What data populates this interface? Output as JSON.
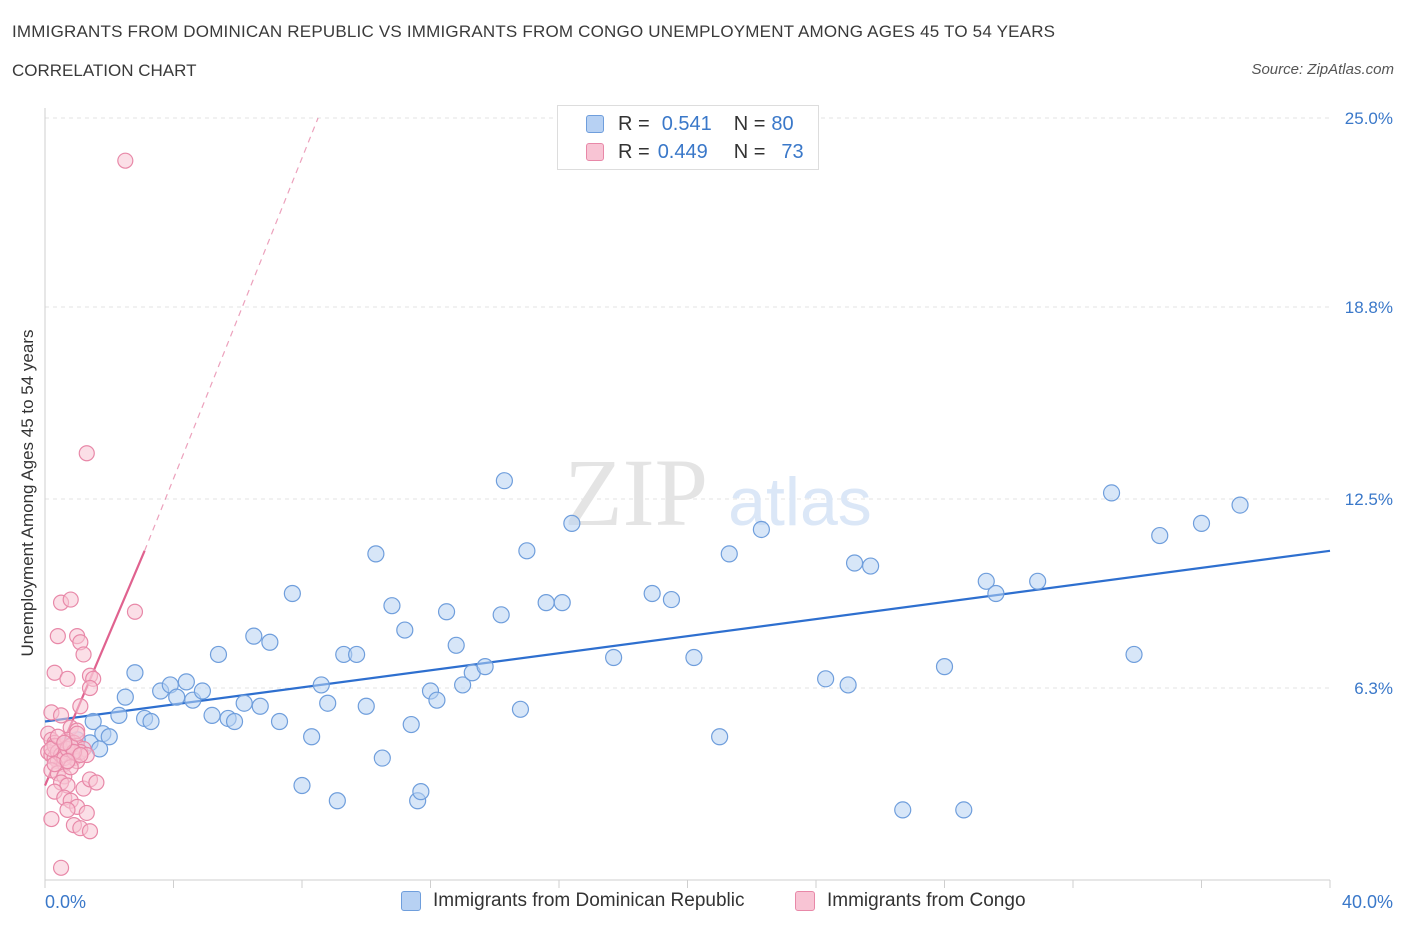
{
  "header": {
    "title": "IMMIGRANTS FROM DOMINICAN REPUBLIC VS IMMIGRANTS FROM CONGO UNEMPLOYMENT AMONG AGES 45 TO 54 YEARS",
    "subtitle": "CORRELATION CHART",
    "source": "Source: ZipAtlas.com"
  },
  "watermark": {
    "zip": "ZIP",
    "atlas": "atlas"
  },
  "legend": {
    "r_label": "R =",
    "n_label": "N =",
    "rows": [
      {
        "r": "0.541",
        "n": "80"
      },
      {
        "r": "0.449",
        "n": "73"
      }
    ]
  },
  "colors": {
    "blue_fill": "#b7d1f3",
    "blue_stroke": "#6f9edc",
    "blue_line": "#2e6fcf",
    "pink_fill": "#f8c4d4",
    "pink_stroke": "#e888a8",
    "pink_line": "#e0628f",
    "grid": "#e3e3e3",
    "tick_text": "#3a78c9"
  },
  "chart_data": {
    "type": "scatter",
    "title": "IMMIGRANTS FROM DOMINICAN REPUBLIC VS IMMIGRANTS FROM CONGO UNEMPLOYMENT AMONG AGES 45 TO 54 YEARS",
    "ylabel": "Unemployment Among Ages 45 to 54 years",
    "xlabel": "",
    "xlim": [
      0,
      40
    ],
    "ylim": [
      0,
      25
    ],
    "x_tick_labels": [
      {
        "value": 0,
        "label": "0.0%"
      },
      {
        "value": 40,
        "label": "40.0%"
      }
    ],
    "y_tick_labels": [
      {
        "value": 6.3,
        "label": "6.3%"
      },
      {
        "value": 12.5,
        "label": "12.5%"
      },
      {
        "value": 18.8,
        "label": "18.8%"
      },
      {
        "value": 25.0,
        "label": "25.0%"
      }
    ],
    "grid": true,
    "legend_position": "top-center",
    "series": [
      {
        "name": "Immigrants from Dominican Republic",
        "color": "#6f9edc",
        "trend": {
          "x": [
            0,
            40
          ],
          "y": [
            5.2,
            10.8
          ],
          "style": "solid"
        },
        "points": [
          [
            1.4,
            4.5
          ],
          [
            1.5,
            5.2
          ],
          [
            1.8,
            4.8
          ],
          [
            2.0,
            4.7
          ],
          [
            2.3,
            5.4
          ],
          [
            2.5,
            6.0
          ],
          [
            2.8,
            6.8
          ],
          [
            3.1,
            5.3
          ],
          [
            3.3,
            5.2
          ],
          [
            3.6,
            6.2
          ],
          [
            3.9,
            6.4
          ],
          [
            4.1,
            6.0
          ],
          [
            4.4,
            6.5
          ],
          [
            4.6,
            5.9
          ],
          [
            4.9,
            6.2
          ],
          [
            5.2,
            5.4
          ],
          [
            5.4,
            7.4
          ],
          [
            5.7,
            5.3
          ],
          [
            5.9,
            5.2
          ],
          [
            6.2,
            5.8
          ],
          [
            6.5,
            8.0
          ],
          [
            6.7,
            5.7
          ],
          [
            7.0,
            7.8
          ],
          [
            7.3,
            5.2
          ],
          [
            7.7,
            9.4
          ],
          [
            8.0,
            3.1
          ],
          [
            8.3,
            4.7
          ],
          [
            8.6,
            6.4
          ],
          [
            8.8,
            5.8
          ],
          [
            9.1,
            2.6
          ],
          [
            9.3,
            7.4
          ],
          [
            9.7,
            7.4
          ],
          [
            10.0,
            5.7
          ],
          [
            10.3,
            10.7
          ],
          [
            10.5,
            4.0
          ],
          [
            10.8,
            9.0
          ],
          [
            11.2,
            8.2
          ],
          [
            11.4,
            5.1
          ],
          [
            11.6,
            2.6
          ],
          [
            11.7,
            2.9
          ],
          [
            12.0,
            6.2
          ],
          [
            12.2,
            5.9
          ],
          [
            12.5,
            8.8
          ],
          [
            12.8,
            7.7
          ],
          [
            13.0,
            6.4
          ],
          [
            13.3,
            6.8
          ],
          [
            13.7,
            7.0
          ],
          [
            14.2,
            8.7
          ],
          [
            14.3,
            13.1
          ],
          [
            14.8,
            5.6
          ],
          [
            15.0,
            10.8
          ],
          [
            15.6,
            9.1
          ],
          [
            16.1,
            9.1
          ],
          [
            16.4,
            11.7
          ],
          [
            17.7,
            7.3
          ],
          [
            18.9,
            9.4
          ],
          [
            19.5,
            9.2
          ],
          [
            20.2,
            7.3
          ],
          [
            21.0,
            4.7
          ],
          [
            21.3,
            10.7
          ],
          [
            22.3,
            11.5
          ],
          [
            24.3,
            6.6
          ],
          [
            25.0,
            6.4
          ],
          [
            25.2,
            10.4
          ],
          [
            25.7,
            10.3
          ],
          [
            26.7,
            2.3
          ],
          [
            28.0,
            7.0
          ],
          [
            28.6,
            2.3
          ],
          [
            29.3,
            9.8
          ],
          [
            29.6,
            9.4
          ],
          [
            30.9,
            9.8
          ],
          [
            33.2,
            12.7
          ],
          [
            33.9,
            7.4
          ],
          [
            34.7,
            11.3
          ],
          [
            36.0,
            11.7
          ],
          [
            37.2,
            12.3
          ],
          [
            1.0,
            4.6
          ],
          [
            0.6,
            4.4
          ],
          [
            1.7,
            4.3
          ],
          [
            0.9,
            4.2
          ]
        ]
      },
      {
        "name": "Immigrants from Congo",
        "color": "#e888a8",
        "trend": {
          "x": [
            0,
            3.1
          ],
          "y": [
            3.1,
            10.8
          ],
          "style": "solid",
          "extension": {
            "x": [
              3.1,
              8.5
            ],
            "y": [
              10.8,
              25.0
            ],
            "style": "dashed"
          }
        },
        "points": [
          [
            2.5,
            23.6
          ],
          [
            1.3,
            14.0
          ],
          [
            2.8,
            8.8
          ],
          [
            0.5,
            9.1
          ],
          [
            0.8,
            9.2
          ],
          [
            0.4,
            8.0
          ],
          [
            1.0,
            8.0
          ],
          [
            1.1,
            7.8
          ],
          [
            1.2,
            7.4
          ],
          [
            0.3,
            6.8
          ],
          [
            0.7,
            6.6
          ],
          [
            1.4,
            6.7
          ],
          [
            1.5,
            6.6
          ],
          [
            1.4,
            6.3
          ],
          [
            0.2,
            5.5
          ],
          [
            0.5,
            5.4
          ],
          [
            1.1,
            5.7
          ],
          [
            0.8,
            5.0
          ],
          [
            1.0,
            4.9
          ],
          [
            0.1,
            4.8
          ],
          [
            0.2,
            4.6
          ],
          [
            0.3,
            4.5
          ],
          [
            0.4,
            4.4
          ],
          [
            0.5,
            4.3
          ],
          [
            0.6,
            4.2
          ],
          [
            0.7,
            4.6
          ],
          [
            0.9,
            4.5
          ],
          [
            1.0,
            4.4
          ],
          [
            1.2,
            4.3
          ],
          [
            0.1,
            4.2
          ],
          [
            0.2,
            4.1
          ],
          [
            0.3,
            4.0
          ],
          [
            0.4,
            3.9
          ],
          [
            0.6,
            3.8
          ],
          [
            0.8,
            4.1
          ],
          [
            0.9,
            4.0
          ],
          [
            1.0,
            3.9
          ],
          [
            1.1,
            4.2
          ],
          [
            1.3,
            4.1
          ],
          [
            0.2,
            3.6
          ],
          [
            0.4,
            3.5
          ],
          [
            0.6,
            3.4
          ],
          [
            0.5,
            3.2
          ],
          [
            0.7,
            3.1
          ],
          [
            1.2,
            3.0
          ],
          [
            1.4,
            3.3
          ],
          [
            1.6,
            3.2
          ],
          [
            0.3,
            2.9
          ],
          [
            0.6,
            2.7
          ],
          [
            0.8,
            2.6
          ],
          [
            1.0,
            2.4
          ],
          [
            0.7,
            2.3
          ],
          [
            1.3,
            2.2
          ],
          [
            0.2,
            2.0
          ],
          [
            0.9,
            1.8
          ],
          [
            1.1,
            1.7
          ],
          [
            1.4,
            1.6
          ],
          [
            0.5,
            0.4
          ],
          [
            0.3,
            4.4
          ],
          [
            0.4,
            4.2
          ],
          [
            0.5,
            4.1
          ],
          [
            0.6,
            4.0
          ],
          [
            0.7,
            4.3
          ],
          [
            0.8,
            4.4
          ],
          [
            0.9,
            4.2
          ],
          [
            1.1,
            4.1
          ],
          [
            0.2,
            4.3
          ],
          [
            0.3,
            3.8
          ],
          [
            0.4,
            4.7
          ],
          [
            0.6,
            4.5
          ],
          [
            0.8,
            3.7
          ],
          [
            1.0,
            4.8
          ],
          [
            0.7,
            3.9
          ]
        ]
      }
    ]
  },
  "bottom_legend": {
    "items": [
      {
        "label": "Immigrants from Dominican Republic"
      },
      {
        "label": "Immigrants from Congo"
      }
    ]
  }
}
